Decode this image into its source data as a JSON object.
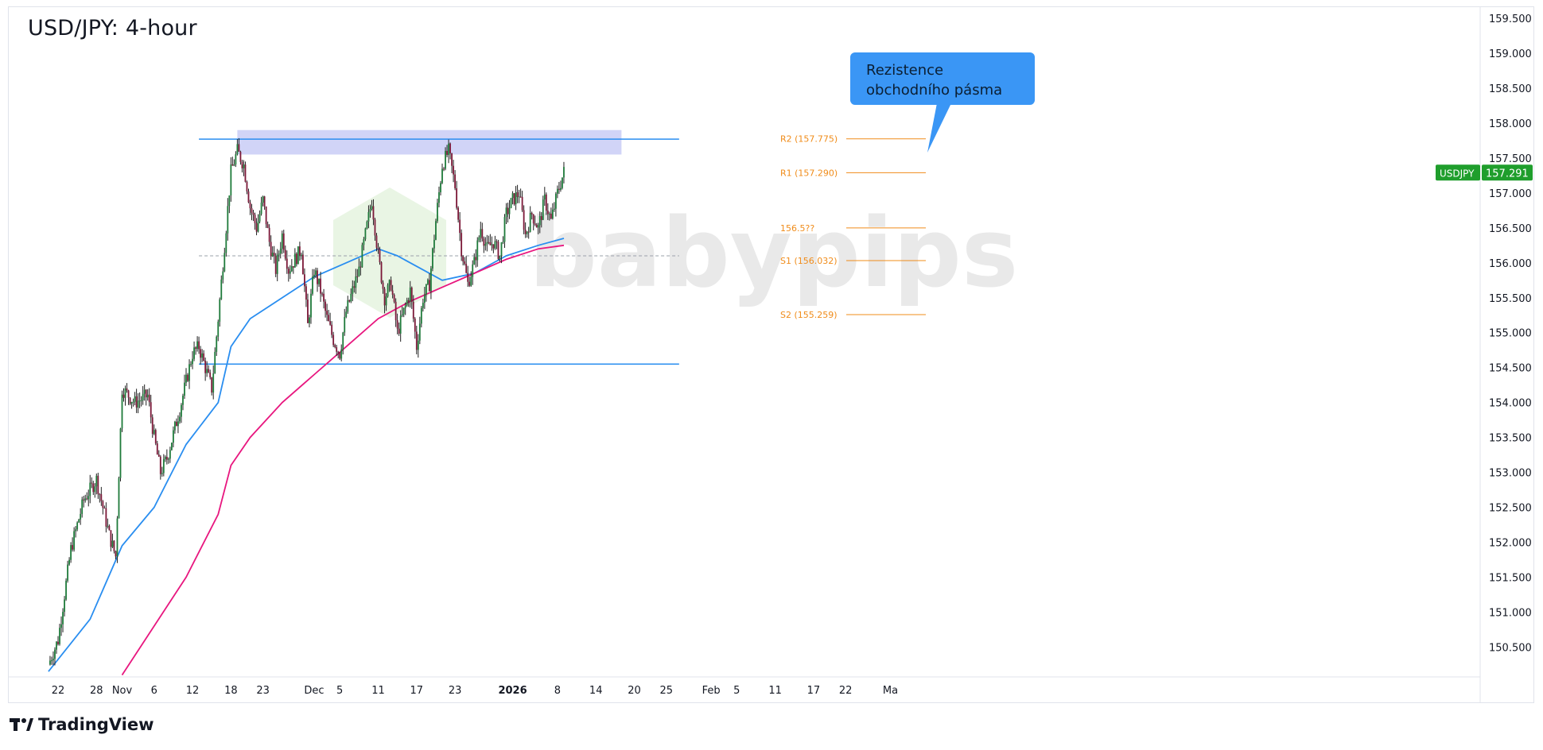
{
  "chart_data": {
    "type": "candlestick",
    "title": "USD/JPY: 4-hour",
    "symbol": "USDJPY",
    "last_price": "157.291",
    "ylim": [
      150.1,
      159.7
    ],
    "y_ticks": [
      "159.500",
      "159.000",
      "158.500",
      "158.000",
      "157.500",
      "157.000",
      "156.500",
      "156.000",
      "155.500",
      "155.000",
      "154.500",
      "154.000",
      "153.500",
      "153.000",
      "152.500",
      "152.000",
      "151.500",
      "151.000",
      "150.500"
    ],
    "x_ticks": [
      {
        "label": "22",
        "day": 0
      },
      {
        "label": "28",
        "day": 6
      },
      {
        "label": "Nov",
        "day": 10
      },
      {
        "label": "6",
        "day": 15
      },
      {
        "label": "12",
        "day": 21
      },
      {
        "label": "18",
        "day": 27
      },
      {
        "label": "23",
        "day": 32
      },
      {
        "label": "Dec",
        "day": 40
      },
      {
        "label": "5",
        "day": 44
      },
      {
        "label": "11",
        "day": 50
      },
      {
        "label": "17",
        "day": 56
      },
      {
        "label": "23",
        "day": 62
      },
      {
        "label": "2026",
        "day": 71,
        "bold": true
      },
      {
        "label": "8",
        "day": 78
      },
      {
        "label": "14",
        "day": 84
      },
      {
        "label": "20",
        "day": 90
      },
      {
        "label": "25",
        "day": 95
      },
      {
        "label": "Feb",
        "day": 102
      },
      {
        "label": "5",
        "day": 106
      },
      {
        "label": "11",
        "day": 112
      },
      {
        "label": "17",
        "day": 118
      },
      {
        "label": "22",
        "day": 123
      },
      {
        "label": "Ma",
        "day": 130
      }
    ],
    "price_path": [
      [
        -1.5,
        150.25
      ],
      [
        0,
        150.6
      ],
      [
        2,
        151.9
      ],
      [
        4,
        152.6
      ],
      [
        6,
        152.9
      ],
      [
        8,
        152.1
      ],
      [
        9,
        151.8
      ],
      [
        10,
        154.2
      ],
      [
        12,
        154.0
      ],
      [
        14,
        154.1
      ],
      [
        15,
        153.5
      ],
      [
        16,
        153.0
      ],
      [
        17,
        153.2
      ],
      [
        19,
        153.9
      ],
      [
        21,
        154.7
      ],
      [
        22,
        154.8
      ],
      [
        23,
        154.5
      ],
      [
        24,
        154.2
      ],
      [
        25,
        155.2
      ],
      [
        27,
        157.3
      ],
      [
        28,
        157.6
      ],
      [
        29,
        157.4
      ],
      [
        30,
        156.8
      ],
      [
        31,
        156.5
      ],
      [
        32,
        156.9
      ],
      [
        33,
        156.3
      ],
      [
        34,
        155.9
      ],
      [
        35,
        156.4
      ],
      [
        36,
        155.9
      ],
      [
        38,
        156.2
      ],
      [
        39,
        155.1
      ],
      [
        40,
        155.9
      ],
      [
        41,
        155.6
      ],
      [
        42,
        155.2
      ],
      [
        43,
        154.9
      ],
      [
        44,
        154.7
      ],
      [
        45,
        155.3
      ],
      [
        47,
        155.9
      ],
      [
        48,
        156.4
      ],
      [
        49,
        156.9
      ],
      [
        50,
        156.1
      ],
      [
        51,
        155.5
      ],
      [
        52,
        155.7
      ],
      [
        53,
        155.0
      ],
      [
        55,
        155.6
      ],
      [
        56,
        154.8
      ],
      [
        57,
        155.5
      ],
      [
        58,
        155.7
      ],
      [
        59,
        156.6
      ],
      [
        60,
        157.4
      ],
      [
        61,
        157.6
      ],
      [
        62,
        157.1
      ],
      [
        63,
        156.2
      ],
      [
        64,
        155.7
      ],
      [
        65,
        156.0
      ],
      [
        66,
        156.5
      ],
      [
        67,
        156.2
      ],
      [
        68,
        156.3
      ],
      [
        69,
        156.1
      ],
      [
        70,
        156.7
      ],
      [
        71,
        156.9
      ],
      [
        72,
        157.0
      ],
      [
        73,
        156.4
      ],
      [
        74,
        156.7
      ],
      [
        75,
        156.5
      ],
      [
        76,
        156.9
      ],
      [
        77,
        156.6
      ],
      [
        78,
        157.0
      ],
      [
        79,
        157.3
      ]
    ],
    "series": [
      {
        "kind": "ma",
        "color": "#2a8ef0",
        "values": [
          [
            -1.5,
            150.15
          ],
          [
            5,
            150.9
          ],
          [
            10,
            151.95
          ],
          [
            15,
            152.5
          ],
          [
            20,
            153.4
          ],
          [
            25,
            154.0
          ],
          [
            27,
            154.8
          ],
          [
            30,
            155.2
          ],
          [
            35,
            155.5
          ],
          [
            40,
            155.8
          ],
          [
            45,
            156.0
          ],
          [
            50,
            156.2
          ],
          [
            53,
            156.1
          ],
          [
            56,
            155.95
          ],
          [
            60,
            155.75
          ],
          [
            65,
            155.85
          ],
          [
            70,
            156.1
          ],
          [
            75,
            156.25
          ],
          [
            79,
            156.35
          ]
        ]
      },
      {
        "kind": "ma",
        "color": "#e8177f",
        "values": [
          [
            10,
            150.1
          ],
          [
            20,
            151.5
          ],
          [
            25,
            152.4
          ],
          [
            27,
            153.1
          ],
          [
            30,
            153.5
          ],
          [
            35,
            154.0
          ],
          [
            40,
            154.4
          ],
          [
            45,
            154.8
          ],
          [
            50,
            155.2
          ],
          [
            55,
            155.45
          ],
          [
            60,
            155.65
          ],
          [
            65,
            155.85
          ],
          [
            70,
            156.05
          ],
          [
            75,
            156.2
          ],
          [
            79,
            156.25
          ]
        ]
      }
    ],
    "levels": [
      {
        "name": "resistance-line",
        "price": 157.77,
        "from_day": 22,
        "to_day": 97,
        "color": "#2a8ef0"
      },
      {
        "name": "support-line",
        "price": 154.55,
        "from_day": 22,
        "to_day": 97,
        "color": "#2a8ef0"
      },
      {
        "name": "pivot-line",
        "price": 156.1,
        "from_day": 22,
        "to_day": 97,
        "color": "#9aa0aa",
        "dashed": true
      }
    ],
    "zone": {
      "name": "resistance-zone",
      "price_low": 157.55,
      "price_high": 157.9,
      "from_day": 28,
      "to_day": 88,
      "color": "#c9cdf6"
    },
    "pivots": [
      {
        "label": "R2 (157.775)",
        "price": 157.775
      },
      {
        "label": "R1 (157.290)",
        "price": 157.29
      },
      {
        "label": "156.5??",
        "price": 156.5
      },
      {
        "label": "S1 (156.032)",
        "price": 156.032
      },
      {
        "label": "S2 (155.259)",
        "price": 155.259
      }
    ],
    "watermark": "babypips",
    "annotation": {
      "text_line1": "Rezistence",
      "text_line2": "obchodního pásma"
    }
  },
  "footer": {
    "brand": "TradingView"
  }
}
